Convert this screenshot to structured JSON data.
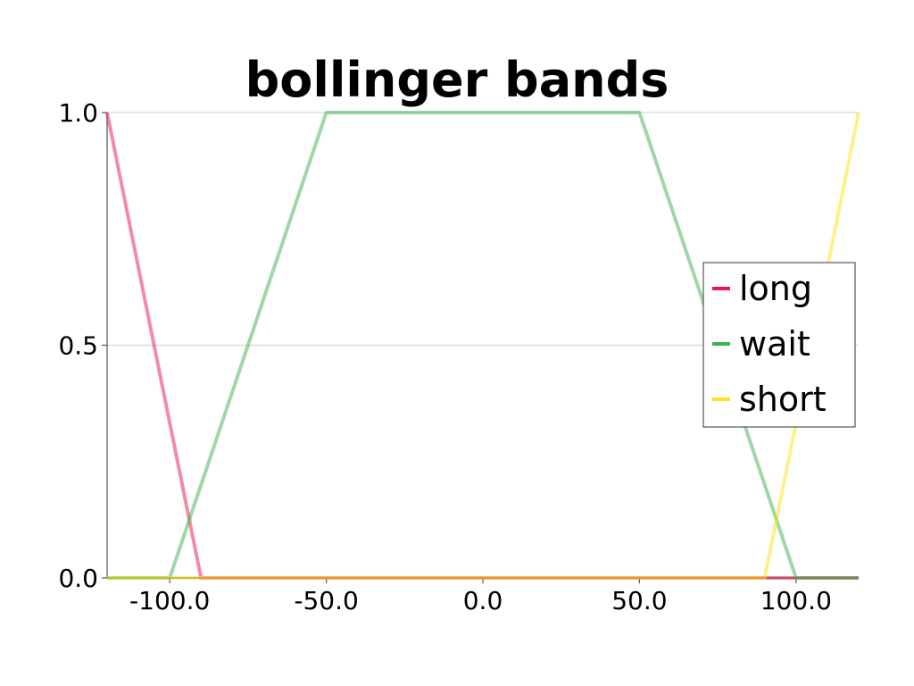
{
  "chart_data": {
    "type": "line",
    "title": "bollinger bands",
    "xlabel": "",
    "ylabel": "",
    "xlim": [
      -120,
      120
    ],
    "ylim": [
      0,
      1
    ],
    "x_ticks": [
      -100,
      -50,
      0,
      50,
      100
    ],
    "x_tick_labels": [
      "-100.0",
      "-50.0",
      "0.0",
      "50.0",
      "100.0"
    ],
    "y_ticks": [
      0,
      0.5,
      1
    ],
    "y_tick_labels": [
      "0.0",
      "0.5",
      "1.0"
    ],
    "grid": "horizontal",
    "legend_position": "right",
    "series": [
      {
        "name": "long",
        "color": "#e6194b",
        "x": [
          -120,
          -90,
          120
        ],
        "y": [
          1,
          0,
          0
        ]
      },
      {
        "name": "wait",
        "color": "#3cb44b",
        "x": [
          -120,
          -100,
          -50,
          50,
          100,
          120
        ],
        "y": [
          0,
          0,
          1,
          1,
          0,
          0
        ]
      },
      {
        "name": "short",
        "color": "#ffe119",
        "x": [
          -120,
          90,
          120
        ],
        "y": [
          0,
          0,
          1
        ]
      }
    ]
  }
}
